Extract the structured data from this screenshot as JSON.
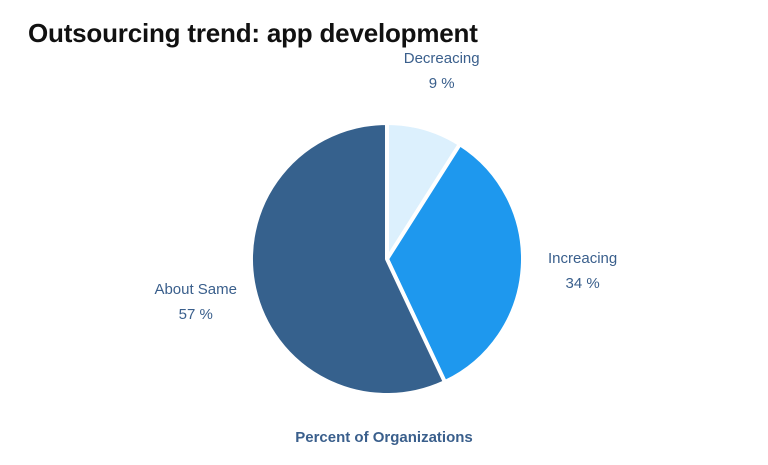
{
  "chart_data": {
    "type": "pie",
    "title": "Outsourcing trend: app development",
    "xlabel": "Percent of Organizations",
    "slices": [
      {
        "label": "Decreacing",
        "value": 9,
        "value_label": "9 %",
        "color": "#dcf0fd"
      },
      {
        "label": "Increacing",
        "value": 34,
        "value_label": "34 %",
        "color": "#1e98ee"
      },
      {
        "label": "About Same",
        "value": 57,
        "value_label": "57 %",
        "color": "#36618d"
      }
    ],
    "start_angle": "top",
    "direction": "clockwise",
    "legend": "none"
  }
}
